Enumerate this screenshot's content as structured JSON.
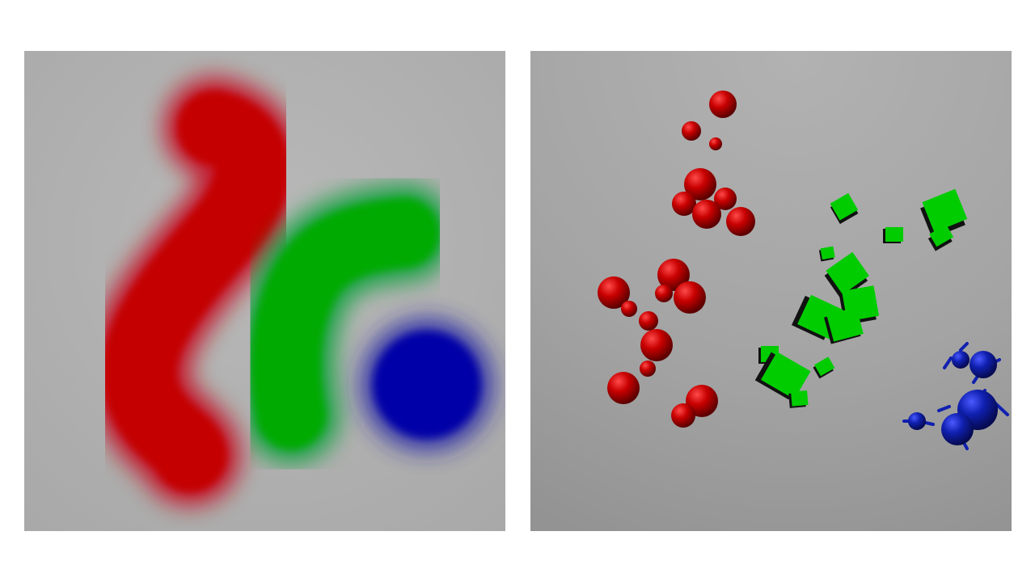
{
  "images": {
    "left": {
      "description_colors": {
        "background": "#b4b4b4",
        "red": "#c40000",
        "green": "#00aa00",
        "blue": "#0000a8"
      },
      "regions": [
        "red-stroke",
        "green-stroke",
        "blue-disc"
      ]
    },
    "right": {
      "description_colors": {
        "background": "#aaaaaa",
        "red": "#c80000",
        "green": "#00cc00",
        "blue": "#1020b0"
      },
      "object_groups": [
        "red-spheres",
        "green-cubes",
        "blue-shapes"
      ]
    }
  }
}
